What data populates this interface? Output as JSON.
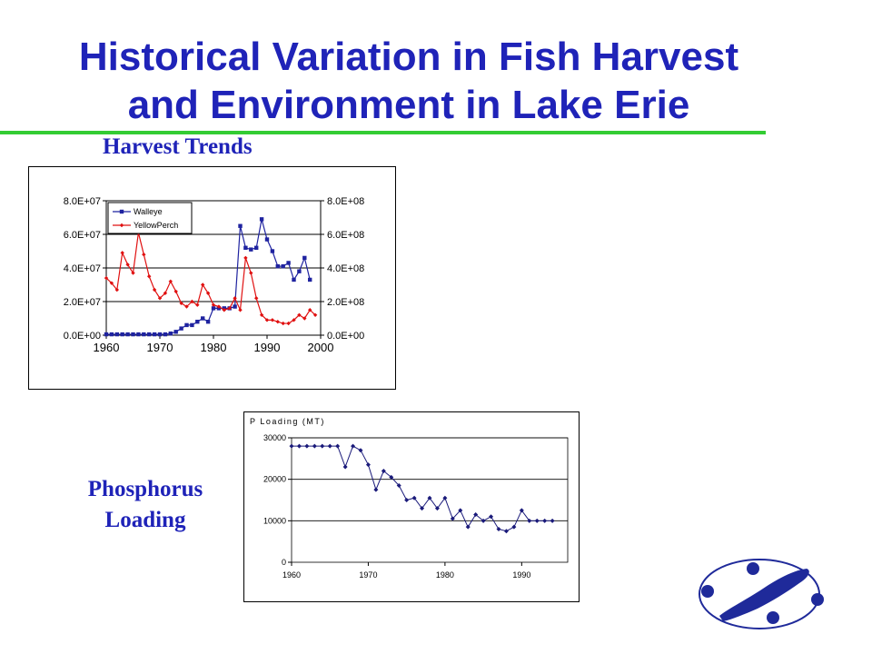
{
  "slide": {
    "title_line1": "Historical Variation in Fish Harvest",
    "title_line2": "and Environment in Lake Erie",
    "harvest_heading": "Harvest Trends",
    "phos_heading_line1": "Phosphorus",
    "phos_heading_line2": "Loading"
  },
  "colors": {
    "title": "#1f23b8",
    "rule": "#33cc33",
    "walleye": "#1f23a0",
    "yellow_perch": "#e01010",
    "phosphorus": "#1a1a7a"
  },
  "logo": {
    "icon": "lake-erie-logo-icon"
  },
  "chart_data": [
    {
      "type": "line",
      "x_ticks": [
        1960,
        1970,
        1980,
        1990,
        2000
      ],
      "x_tick_labels": [
        "1960",
        "1970",
        "1980",
        "1990",
        "2000"
      ],
      "xlim": [
        1960,
        2000
      ],
      "y_left_ticks": [
        0,
        20000000,
        40000000,
        60000000,
        80000000
      ],
      "y_left_tick_labels": [
        "0.0E+00",
        "2.0E+07",
        "4.0E+07",
        "6.0E+07",
        "8.0E+07"
      ],
      "y_left_lim": [
        0,
        80000000
      ],
      "y_right_ticks": [
        0,
        200000000,
        400000000,
        600000000,
        800000000
      ],
      "y_right_tick_labels": [
        "0.0E+00",
        "2.0E+08",
        "4.0E+08",
        "6.0E+08",
        "8.0E+08"
      ],
      "y_right_lim": [
        0,
        800000000
      ],
      "grid": true,
      "legend_position": "top-left",
      "series": [
        {
          "name": "Walleye",
          "axis": "right",
          "marker": "square",
          "x": [
            1960,
            1961,
            1962,
            1963,
            1964,
            1965,
            1966,
            1967,
            1968,
            1969,
            1970,
            1971,
            1972,
            1973,
            1974,
            1975,
            1976,
            1977,
            1978,
            1979,
            1980,
            1981,
            1982,
            1983,
            1984,
            1985,
            1986,
            1987,
            1988,
            1989,
            1990,
            1991,
            1992,
            1993,
            1994,
            1995,
            1996,
            1997,
            1998
          ],
          "values": [
            5000000,
            5000000,
            5000000,
            5000000,
            5000000,
            5000000,
            5000000,
            5000000,
            5000000,
            5000000,
            5000000,
            5000000,
            10000000,
            20000000,
            40000000,
            60000000,
            60000000,
            80000000,
            100000000,
            80000000,
            160000000,
            160000000,
            160000000,
            160000000,
            170000000,
            650000000,
            520000000,
            510000000,
            520000000,
            690000000,
            570000000,
            500000000,
            410000000,
            410000000,
            430000000,
            330000000,
            380000000,
            460000000,
            330000000
          ]
        },
        {
          "name": "YellowPerch",
          "axis": "left",
          "marker": "diamond",
          "x": [
            1960,
            1961,
            1962,
            1963,
            1964,
            1965,
            1966,
            1967,
            1968,
            1969,
            1970,
            1971,
            1972,
            1973,
            1974,
            1975,
            1976,
            1977,
            1978,
            1979,
            1980,
            1981,
            1982,
            1983,
            1984,
            1985,
            1986,
            1987,
            1988,
            1989,
            1990,
            1991,
            1992,
            1993,
            1994,
            1995,
            1996,
            1997,
            1998,
            1999
          ],
          "values": [
            34000000,
            31000000,
            27000000,
            49000000,
            42000000,
            37000000,
            61000000,
            48000000,
            35000000,
            27000000,
            22000000,
            25000000,
            32000000,
            26000000,
            19000000,
            17000000,
            20000000,
            18000000,
            30000000,
            25000000,
            18000000,
            17000000,
            15000000,
            16000000,
            22000000,
            15000000,
            46000000,
            37000000,
            22000000,
            12000000,
            9000000,
            9000000,
            8000000,
            7000000,
            7000000,
            9000000,
            12000000,
            10000000,
            15000000,
            12000000
          ]
        }
      ]
    },
    {
      "type": "line",
      "title": "P Loading (MT)",
      "x_ticks": [
        1960,
        1970,
        1980,
        1990
      ],
      "x_tick_labels": [
        "1960",
        "1970",
        "1980",
        "1990"
      ],
      "xlim": [
        1960,
        1996
      ],
      "y_ticks": [
        0,
        10000,
        20000,
        30000
      ],
      "y_tick_labels": [
        "0",
        "10000",
        "20000",
        "30000"
      ],
      "ylim": [
        0,
        30000
      ],
      "grid": true,
      "series": [
        {
          "marker": "diamond",
          "x": [
            1960,
            1961,
            1962,
            1963,
            1964,
            1965,
            1966,
            1967,
            1968,
            1969,
            1970,
            1971,
            1972,
            1973,
            1974,
            1975,
            1976,
            1977,
            1978,
            1979,
            1980,
            1981,
            1982,
            1983,
            1984,
            1985,
            1986,
            1987,
            1988,
            1989,
            1990,
            1991,
            1992,
            1993,
            1994
          ],
          "values": [
            28000,
            28000,
            28000,
            28000,
            28000,
            28000,
            28000,
            23000,
            28000,
            27000,
            23500,
            17500,
            22000,
            20500,
            18500,
            15000,
            15500,
            13000,
            15500,
            13000,
            15500,
            10500,
            12500,
            8500,
            11500,
            10000,
            11000,
            8000,
            7500,
            8500,
            12500,
            10000,
            10000,
            10000,
            10000
          ]
        }
      ]
    }
  ]
}
